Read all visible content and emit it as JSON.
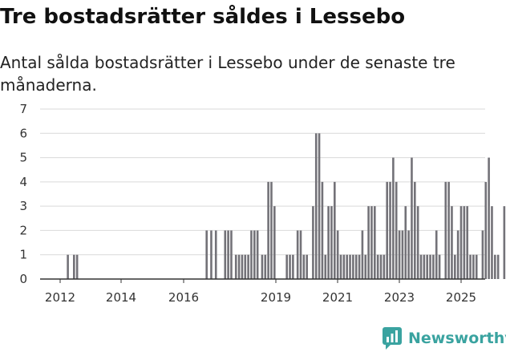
{
  "header": {
    "title": "Tre bostadsrätter såldes i Lessebo",
    "subtitle": "Antal sålda bostadsrätter i Lessebo under de senaste tre månaderna."
  },
  "brand": {
    "name": "Newsworthy",
    "icon": "newsworthy-logo-icon",
    "color": "#3aa3a0"
  },
  "colors": {
    "bar": "#737278",
    "highlight": "#1a9e8f",
    "grid": "#d9d9d9",
    "axis": "#333333"
  },
  "chart_data": {
    "type": "bar",
    "title": "Tre bostadsrätter såldes i Lessebo",
    "subtitle": "Antal sålda bostadsrätter i Lessebo under de senaste tre månaderna.",
    "xlabel": "",
    "ylabel": "",
    "ylim": [
      0,
      7
    ],
    "yticks": [
      0,
      1,
      2,
      3,
      4,
      5,
      6,
      7
    ],
    "xticks": [
      "2012",
      "2014",
      "2016",
      "2019",
      "2021",
      "2023",
      "2025"
    ],
    "grid": true,
    "start_month": "2011-01",
    "x_unit": "month",
    "values": [
      0,
      0,
      0,
      0,
      0,
      0,
      0,
      0,
      0,
      0,
      0,
      0,
      0,
      0,
      0,
      0,
      0,
      0,
      0,
      0,
      0,
      0,
      0,
      0,
      0,
      0,
      0,
      0,
      0,
      0,
      0,
      0,
      0,
      0,
      0,
      0,
      0,
      0,
      0,
      0,
      0,
      0,
      0,
      0,
      0,
      0,
      0,
      0,
      0,
      0,
      0,
      0,
      0,
      0,
      0,
      0,
      0,
      0,
      0,
      0,
      0,
      0,
      0,
      0,
      0,
      0,
      0,
      0,
      0,
      0,
      0,
      0,
      0,
      0,
      0,
      0,
      0,
      0,
      0,
      0,
      0,
      0,
      0,
      0,
      0,
      0,
      0,
      0,
      0,
      0,
      0,
      0,
      0,
      0,
      0,
      0,
      0,
      0,
      0,
      0,
      0,
      0,
      0,
      0,
      0,
      0,
      0,
      0,
      0,
      0,
      0,
      0,
      0,
      0,
      0,
      0,
      0,
      0,
      0,
      0,
      0,
      0,
      0,
      0,
      0,
      0,
      0,
      0,
      0,
      0,
      0,
      0,
      0,
      0,
      0,
      0,
      0,
      0,
      0,
      0,
      0,
      0,
      0,
      0,
      0,
      0,
      0,
      0,
      0,
      0,
      0,
      0,
      0,
      0,
      0,
      0,
      0,
      0,
      0,
      0,
      0,
      0,
      0,
      0,
      0,
      0,
      0,
      0,
      0,
      0,
      0
    ],
    "bars": [
      {
        "x": 12.25,
        "v": 1
      },
      {
        "x": 12.45,
        "v": 1
      },
      {
        "x": 12.55,
        "v": 1
      },
      {
        "x": 16.75,
        "v": 2
      },
      {
        "x": 16.9,
        "v": 2
      },
      {
        "x": 17.05,
        "v": 2
      },
      {
        "x": 17.35,
        "v": 2
      },
      {
        "x": 17.45,
        "v": 2
      },
      {
        "x": 17.55,
        "v": 2
      },
      {
        "x": 17.7,
        "v": 1
      },
      {
        "x": 17.8,
        "v": 1
      },
      {
        "x": 17.9,
        "v": 1
      },
      {
        "x": 18.0,
        "v": 1
      },
      {
        "x": 18.1,
        "v": 1
      },
      {
        "x": 18.2,
        "v": 2
      },
      {
        "x": 18.3,
        "v": 2
      },
      {
        "x": 18.4,
        "v": 2
      },
      {
        "x": 18.55,
        "v": 1
      },
      {
        "x": 18.65,
        "v": 1
      },
      {
        "x": 18.75,
        "v": 4
      },
      {
        "x": 18.85,
        "v": 4
      },
      {
        "x": 18.95,
        "v": 3
      },
      {
        "x": 19.35,
        "v": 1
      },
      {
        "x": 19.45,
        "v": 1
      },
      {
        "x": 19.55,
        "v": 1
      },
      {
        "x": 19.7,
        "v": 2
      },
      {
        "x": 19.8,
        "v": 2
      },
      {
        "x": 19.9,
        "v": 1
      },
      {
        "x": 20.0,
        "v": 1
      },
      {
        "x": 20.2,
        "v": 3
      },
      {
        "x": 20.3,
        "v": 6
      },
      {
        "x": 20.4,
        "v": 6
      },
      {
        "x": 20.5,
        "v": 4
      },
      {
        "x": 20.6,
        "v": 1
      },
      {
        "x": 20.7,
        "v": 3
      },
      {
        "x": 20.8,
        "v": 3
      },
      {
        "x": 20.9,
        "v": 4
      },
      {
        "x": 21.0,
        "v": 2
      },
      {
        "x": 21.1,
        "v": 1
      },
      {
        "x": 21.2,
        "v": 1
      },
      {
        "x": 21.3,
        "v": 1
      },
      {
        "x": 21.4,
        "v": 1
      },
      {
        "x": 21.5,
        "v": 1
      },
      {
        "x": 21.6,
        "v": 1
      },
      {
        "x": 21.7,
        "v": 1
      },
      {
        "x": 21.8,
        "v": 2
      },
      {
        "x": 21.9,
        "v": 1
      },
      {
        "x": 22.0,
        "v": 3
      },
      {
        "x": 22.1,
        "v": 3
      },
      {
        "x": 22.2,
        "v": 3
      },
      {
        "x": 22.3,
        "v": 1
      },
      {
        "x": 22.4,
        "v": 1
      },
      {
        "x": 22.5,
        "v": 1
      },
      {
        "x": 22.6,
        "v": 4
      },
      {
        "x": 22.7,
        "v": 4
      },
      {
        "x": 22.8,
        "v": 5
      },
      {
        "x": 22.9,
        "v": 4
      },
      {
        "x": 23.0,
        "v": 2
      },
      {
        "x": 23.1,
        "v": 2
      },
      {
        "x": 23.2,
        "v": 3
      },
      {
        "x": 23.3,
        "v": 2
      },
      {
        "x": 23.4,
        "v": 5
      },
      {
        "x": 23.5,
        "v": 4
      },
      {
        "x": 23.6,
        "v": 3
      },
      {
        "x": 23.7,
        "v": 1
      },
      {
        "x": 23.8,
        "v": 1
      },
      {
        "x": 23.9,
        "v": 1
      },
      {
        "x": 24.0,
        "v": 1
      },
      {
        "x": 24.1,
        "v": 1
      },
      {
        "x": 24.2,
        "v": 2
      },
      {
        "x": 24.3,
        "v": 1
      },
      {
        "x": 24.5,
        "v": 4
      },
      {
        "x": 24.6,
        "v": 4
      },
      {
        "x": 24.7,
        "v": 3
      },
      {
        "x": 24.8,
        "v": 1
      },
      {
        "x": 24.9,
        "v": 2
      },
      {
        "x": 25.0,
        "v": 3
      },
      {
        "x": 25.1,
        "v": 3
      },
      {
        "x": 25.2,
        "v": 3
      },
      {
        "x": 25.3,
        "v": 1
      },
      {
        "x": 25.4,
        "v": 1
      },
      {
        "x": 25.5,
        "v": 1
      },
      {
        "x": 25.7,
        "v": 2
      },
      {
        "x": 25.8,
        "v": 4
      },
      {
        "x": 25.9,
        "v": 5
      },
      {
        "x": 26.0,
        "v": 3
      },
      {
        "x": 26.1,
        "v": 1
      },
      {
        "x": 26.2,
        "v": 1
      },
      {
        "x": 26.4,
        "v": 3
      },
      {
        "x": 26.5,
        "v": 3
      },
      {
        "x": 26.6,
        "v": 3
      },
      {
        "x": 26.7,
        "v": 1
      },
      {
        "x": 26.8,
        "v": 3
      },
      {
        "x": 26.9,
        "v": 3
      },
      {
        "x": 27.0,
        "v": 2
      },
      {
        "x": 27.4,
        "v": 1
      },
      {
        "x": 27.5,
        "v": 1
      },
      {
        "x": 27.6,
        "v": 2
      },
      {
        "x": 27.7,
        "v": 2
      }
    ],
    "highlight": {
      "label": "3",
      "value": 3
    }
  }
}
